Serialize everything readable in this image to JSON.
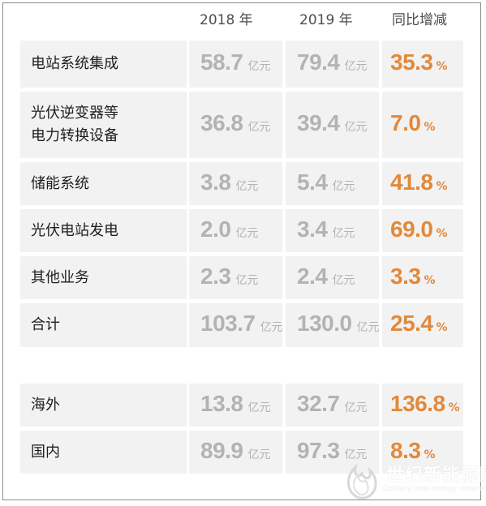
{
  "headers": [
    "2018 年",
    "2019 年",
    "同比增减"
  ],
  "unit": "亿元",
  "pct_unit": "%",
  "rows": [
    {
      "label_lines": [
        "电站系统集成"
      ],
      "v2018": "58.7",
      "v2019": "79.4",
      "change": "35.3"
    },
    {
      "label_lines": [
        "光伏逆变器等",
        "电力转换设备"
      ],
      "v2018": "36.8",
      "v2019": "39.4",
      "change": "7.0"
    },
    {
      "label_lines": [
        "储能系统"
      ],
      "v2018": "3.8",
      "v2019": "5.4",
      "change": "41.8"
    },
    {
      "label_lines": [
        "光伏电站发电"
      ],
      "v2018": "2.0",
      "v2019": "3.4",
      "change": "69.0"
    },
    {
      "label_lines": [
        "其他业务"
      ],
      "v2018": "2.3",
      "v2019": "2.4",
      "change": "3.3"
    },
    {
      "label_lines": [
        "合计"
      ],
      "v2018": "103.7",
      "v2019": "130.0",
      "change": "25.4"
    },
    {
      "label_lines": [
        "海外"
      ],
      "v2018": "13.8",
      "v2019": "32.7",
      "change": "136.8"
    },
    {
      "label_lines": [
        "国内"
      ],
      "v2018": "89.9",
      "v2019": "97.3",
      "change": "8.3"
    }
  ],
  "watermark": {
    "cn": "世纪新能源网",
    "en": "Century new energy network"
  }
}
